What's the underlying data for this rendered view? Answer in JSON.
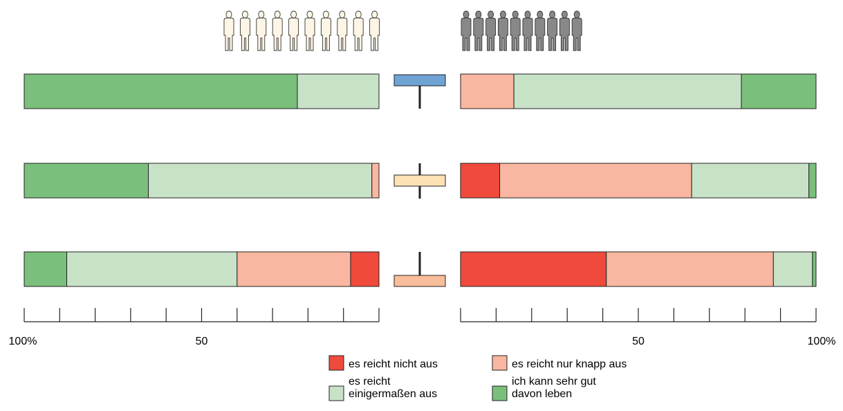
{
  "chart_data": {
    "type": "bar",
    "stacked": true,
    "orientation": "horizontal",
    "panels": [
      {
        "side": "left",
        "figure_color": "#fdf5e6",
        "axis_direction": "reversed",
        "axis_range": [
          0,
          100
        ],
        "tick_labels": [
          "100%",
          "50"
        ],
        "rows": [
          {
            "marker_color": "#6fa3d4",
            "segments": [
              {
                "category": "ich kann sehr gut davon leben",
                "value": 77
              },
              {
                "category": "es reicht einigermaßen aus",
                "value": 23
              }
            ]
          },
          {
            "marker_color": "#fde2b5",
            "segments": [
              {
                "category": "ich kann sehr gut davon leben",
                "value": 35
              },
              {
                "category": "es reicht einigermaßen aus",
                "value": 63
              },
              {
                "category": "es reicht nur knapp aus",
                "value": 2
              }
            ]
          },
          {
            "marker_color": "#f8bd9a",
            "segments": [
              {
                "category": "ich kann sehr gut davon leben",
                "value": 12
              },
              {
                "category": "es reicht einigermaßen aus",
                "value": 48
              },
              {
                "category": "es reicht nur knapp aus",
                "value": 32
              },
              {
                "category": "es reicht nicht aus",
                "value": 8
              }
            ]
          }
        ]
      },
      {
        "side": "right",
        "figure_color": "#888888",
        "axis_direction": "normal",
        "axis_range": [
          0,
          100
        ],
        "tick_labels": [
          "50",
          "100%"
        ],
        "rows": [
          {
            "segments": [
              {
                "category": "es reicht nur knapp aus",
                "value": 15
              },
              {
                "category": "es reicht einigermaßen aus",
                "value": 64
              },
              {
                "category": "ich kann sehr gut davon leben",
                "value": 21
              }
            ]
          },
          {
            "segments": [
              {
                "category": "es reicht nicht aus",
                "value": 11
              },
              {
                "category": "es reicht nur knapp aus",
                "value": 54
              },
              {
                "category": "es reicht einigermaßen aus",
                "value": 33
              },
              {
                "category": "ich kann sehr gut davon leben",
                "value": 2
              }
            ]
          },
          {
            "segments": [
              {
                "category": "es reicht nicht aus",
                "value": 41
              },
              {
                "category": "es reicht nur knapp aus",
                "value": 47
              },
              {
                "category": "es reicht einigermaßen aus",
                "value": 11
              },
              {
                "category": "ich kann sehr gut davon leben",
                "value": 1
              }
            ]
          }
        ]
      }
    ],
    "legend": {
      "placement": "bottom-center",
      "items": [
        {
          "category": "es reicht nicht aus",
          "lines": [
            "es reicht nicht aus"
          ],
          "color": "#ef4a3c"
        },
        {
          "category": "es reicht nur knapp aus",
          "lines": [
            "es reicht nur knapp aus"
          ],
          "color": "#f9b6a0"
        },
        {
          "category": "es reicht einigermaßen aus",
          "lines": [
            "es reicht",
            "einigermaßen aus"
          ],
          "color": "#c8e2c8"
        },
        {
          "category": "ich kann sehr gut davon leben",
          "lines": [
            "ich kann sehr gut",
            "davon leben"
          ],
          "color": "#7abf7c"
        }
      ]
    },
    "figures_per_panel": 10,
    "grid": false
  }
}
